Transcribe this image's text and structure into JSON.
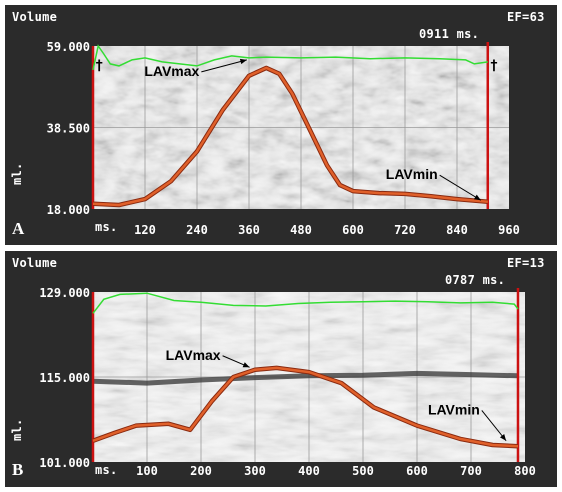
{
  "chart_data": [
    {
      "type": "line",
      "panel_label": "A",
      "ylabel_top": "Volume",
      "ylabel_unit": "ml.",
      "ef_label": "EF=63",
      "time_readout": "0911 ms.",
      "x_unit_label": "ms.",
      "xlim": [
        0,
        960
      ],
      "ylim": [
        18.0,
        59.0
      ],
      "y_ticks": [
        "59.000",
        "38.500",
        "18.000"
      ],
      "y_tick_values": [
        59.0,
        38.5,
        18.0
      ],
      "x_ticks": [
        120,
        240,
        360,
        480,
        600,
        720,
        840,
        960
      ],
      "cursor_x": 911,
      "grid": true,
      "annotations": [
        {
          "text": "LAVmax",
          "arrow_from": [
            250,
            52.5
          ],
          "arrow_to": [
            355,
            55.5
          ]
        },
        {
          "text": "LAVmin",
          "arrow_from": [
            800,
            26.5
          ],
          "arrow_to": [
            895,
            20.2
          ]
        }
      ],
      "series": [
        {
          "color": "#e0602a",
          "x": [
            0,
            60,
            120,
            180,
            240,
            300,
            360,
            400,
            430,
            460,
            500,
            540,
            570,
            600,
            660,
            720,
            780,
            840,
            911
          ],
          "values": [
            19.3,
            19.0,
            20.5,
            25.0,
            32.5,
            43.0,
            51.5,
            53.5,
            52.0,
            47.0,
            38.0,
            29.0,
            24.0,
            22.5,
            22.0,
            21.8,
            21.2,
            20.5,
            19.8
          ]
        },
        {
          "color": "#33dd33",
          "x": [
            0,
            12,
            25,
            40,
            60,
            90,
            120,
            160,
            200,
            240,
            280,
            320,
            360,
            400,
            480,
            560,
            640,
            720,
            800,
            860,
            880,
            911
          ],
          "values": [
            53.0,
            59.0,
            57.0,
            54.5,
            54.0,
            55.5,
            56.0,
            55.0,
            54.5,
            54.0,
            55.5,
            56.5,
            56.0,
            56.2,
            56.0,
            56.2,
            55.8,
            56.0,
            55.8,
            55.5,
            54.5,
            55.0
          ]
        }
      ]
    },
    {
      "type": "line",
      "panel_label": "B",
      "ylabel_top": "Volume",
      "ylabel_unit": "ml.",
      "ef_label": "EF=13",
      "time_readout": "0787 ms.",
      "x_unit_label": "ms.",
      "xlim": [
        0,
        800
      ],
      "ylim": [
        101.0,
        129.0
      ],
      "y_ticks": [
        "129.000",
        "115.000",
        "101.000"
      ],
      "y_tick_values": [
        129.0,
        115.0,
        101.0
      ],
      "x_ticks": [
        100,
        200,
        300,
        400,
        500,
        600,
        700,
        800
      ],
      "cursor_x": 787,
      "grid": true,
      "annotations": [
        {
          "text": "LAVmax",
          "arrow_from": [
            240,
            118.5
          ],
          "arrow_to": [
            290,
            116.6
          ]
        },
        {
          "text": "LAVmin",
          "arrow_from": [
            720,
            109.5
          ],
          "arrow_to": [
            765,
            104.5
          ]
        }
      ],
      "series": [
        {
          "color": "#e0602a",
          "x": [
            0,
            40,
            80,
            140,
            180,
            220,
            260,
            300,
            340,
            400,
            460,
            520,
            600,
            680,
            740,
            787
          ],
          "values": [
            104.5,
            105.8,
            107.0,
            107.3,
            106.3,
            111.0,
            115.0,
            116.2,
            116.5,
            115.8,
            114.0,
            110.0,
            107.0,
            104.8,
            103.8,
            103.6
          ]
        },
        {
          "color": "#33dd33",
          "x": [
            0,
            20,
            50,
            100,
            150,
            200,
            260,
            320,
            380,
            440,
            500,
            560,
            620,
            680,
            740,
            780,
            787
          ],
          "values": [
            125.5,
            127.8,
            128.6,
            128.8,
            127.6,
            127.3,
            126.8,
            126.7,
            127.1,
            127.3,
            127.4,
            127.5,
            127.4,
            127.2,
            127.3,
            127.0,
            126.2
          ]
        }
      ]
    }
  ]
}
